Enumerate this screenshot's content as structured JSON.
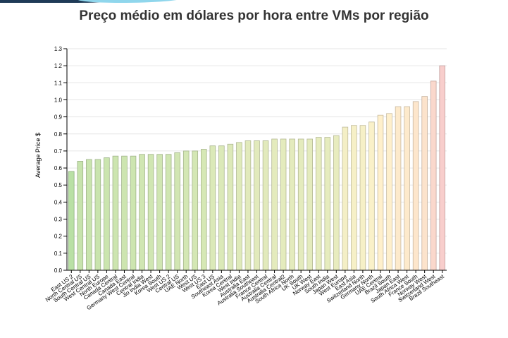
{
  "title": "Preço médio em dólares por hora entre VMs por região",
  "chart_data": {
    "type": "bar",
    "title": "Preço médio em dólares por hora entre VMs por região",
    "xlabel": "",
    "ylabel": "Average Price $",
    "ylim": [
      0,
      1.3
    ],
    "yticks": [
      "0.0",
      "0.1",
      "0.2",
      "0.3",
      "0.4",
      "0.5",
      "0.6",
      "0.7",
      "0.8",
      "0.9",
      "1.0",
      "1.1",
      "1.2",
      "1.3"
    ],
    "grid": true,
    "categories": [
      "East US 2",
      "North Central US",
      "South Central US",
      "West Central US",
      "North Europe",
      "Canada Central",
      "Canada East",
      "Germany West Central",
      "Central India",
      "Jio India West",
      "Korea South",
      "West US 2",
      "Central US",
      "UAE North",
      "West US",
      "West US 3",
      "East US",
      "Southeast Asia",
      "Korea Central",
      "West India",
      "Australia East",
      "Australia Southeast",
      "France Central",
      "Australia Central",
      "Australia Central2",
      "South Africa North",
      "UK South",
      "UK West",
      "Norway East",
      "South India",
      "Japan West",
      "West Europe",
      "East Asia",
      "Switzerland North",
      "Germany North",
      "UAE Central",
      "Brazil South",
      "Japan East",
      "South Africa West",
      "France South",
      "Norway West",
      "Switzerland West",
      "Brazil Southeast"
    ],
    "values": [
      0.58,
      0.64,
      0.65,
      0.65,
      0.66,
      0.67,
      0.67,
      0.67,
      0.68,
      0.68,
      0.68,
      0.68,
      0.69,
      0.7,
      0.7,
      0.71,
      0.73,
      0.73,
      0.74,
      0.75,
      0.76,
      0.76,
      0.76,
      0.77,
      0.77,
      0.77,
      0.77,
      0.77,
      0.78,
      0.78,
      0.79,
      0.84,
      0.85,
      0.85,
      0.87,
      0.91,
      0.92,
      0.96,
      0.96,
      0.99,
      1.02,
      1.11,
      1.2
    ],
    "colors": {
      "low": "#b9e0a5",
      "mid": "#fff2cc",
      "high": "#f8cecc"
    }
  }
}
